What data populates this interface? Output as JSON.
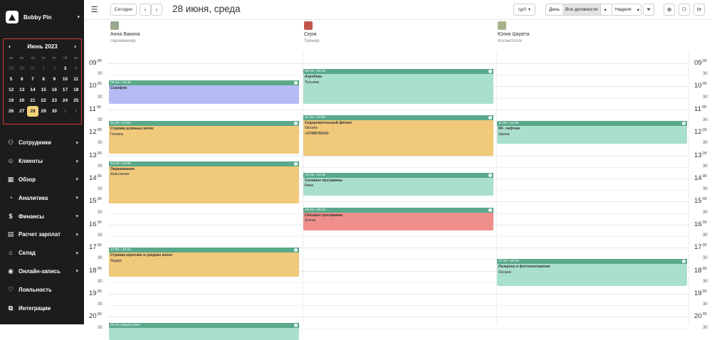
{
  "sidebar": {
    "brand": "Bobby Pin",
    "mini_calendar": {
      "month_label": "Июнь 2023",
      "weekdays": [
        "пн",
        "вт",
        "ср",
        "чт",
        "пт",
        "сб",
        "вс"
      ],
      "weeks": [
        [
          {
            "d": "29",
            "m": true
          },
          {
            "d": "30",
            "m": true
          },
          {
            "d": "31",
            "m": true
          },
          {
            "d": "1",
            "m": true
          },
          {
            "d": "2",
            "m": true
          },
          {
            "d": "3",
            "m": false
          },
          {
            "d": "4",
            "m": true
          }
        ],
        [
          {
            "d": "5"
          },
          {
            "d": "6"
          },
          {
            "d": "7"
          },
          {
            "d": "8"
          },
          {
            "d": "9"
          },
          {
            "d": "10"
          },
          {
            "d": "11"
          }
        ],
        [
          {
            "d": "12"
          },
          {
            "d": "13"
          },
          {
            "d": "14"
          },
          {
            "d": "15"
          },
          {
            "d": "16"
          },
          {
            "d": "17"
          },
          {
            "d": "18"
          }
        ],
        [
          {
            "d": "19"
          },
          {
            "d": "20"
          },
          {
            "d": "21"
          },
          {
            "d": "22"
          },
          {
            "d": "23"
          },
          {
            "d": "24"
          },
          {
            "d": "25"
          }
        ],
        [
          {
            "d": "26"
          },
          {
            "d": "27"
          },
          {
            "d": "28",
            "today": true
          },
          {
            "d": "29"
          },
          {
            "d": "30"
          },
          {
            "d": "1",
            "m": true
          },
          {
            "d": "2",
            "m": true
          }
        ]
      ]
    },
    "nav": [
      {
        "label": "Сотрудники",
        "icon": "users-icon",
        "glyph": "⚇",
        "chev": true
      },
      {
        "label": "Клиенты",
        "icon": "clients-icon",
        "glyph": "☺",
        "chev": true
      },
      {
        "label": "Обзор",
        "icon": "overview-icon",
        "glyph": "▦",
        "chev": true
      },
      {
        "label": "Аналитика",
        "icon": "analytics-icon",
        "glyph": "◔",
        "chev": true
      },
      {
        "label": "Финансы",
        "icon": "finance-icon",
        "glyph": "$",
        "chev": true
      },
      {
        "label": "Расчет зарплат",
        "icon": "salary-icon",
        "glyph": "▤",
        "chev": true
      },
      {
        "label": "Склад",
        "icon": "warehouse-icon",
        "glyph": "⌂",
        "chev": true
      },
      {
        "label": "Онлайн-запись",
        "icon": "online-booking-icon",
        "glyph": "◉",
        "chev": true
      },
      {
        "label": "Лояльность",
        "icon": "loyalty-icon",
        "glyph": "♡",
        "chev": false
      },
      {
        "label": "Интеграции",
        "icon": "integrations-icon",
        "glyph": "⧉",
        "chev": false
      }
    ]
  },
  "toolbar": {
    "menu_icon": "menu-icon",
    "today_label": "Сегодня",
    "prev_icon": "chevron-left-icon",
    "next_icon": "chevron-right-icon",
    "date_title": "28 июня, среда",
    "zoom_label": "ηρ0",
    "view_day": "День",
    "positions_label": "Все должности",
    "view_week": "Неделя",
    "filter_icon": "filter-icon",
    "zoom_icon": "zoom-icon",
    "user_settings_icon": "user-settings-icon",
    "refresh_icon": "refresh-icon"
  },
  "staff": [
    {
      "name": "Анна Вакина",
      "role": "парикмахер",
      "avatar_color": "#9aa88f"
    },
    {
      "name": "Серж",
      "role": "Тренер",
      "avatar_color": "#c2554b"
    },
    {
      "name": "Юлия Шкрета",
      "role": "Косметолог",
      "avatar_color": "#a6b48d"
    }
  ],
  "hours": [
    "09",
    "10",
    "11",
    "12",
    "13",
    "14",
    "15",
    "16",
    "17",
    "18",
    "19",
    "20"
  ],
  "minutes_label": "00",
  "half_label": "30",
  "events": [
    {
      "col": 0,
      "start": "09:45",
      "end": "10:45",
      "time": "09:45—10:45",
      "title": "Серафим",
      "client": "",
      "phone": "",
      "color": "purple"
    },
    {
      "col": 0,
      "start": "11:30",
      "end": "12:55",
      "time": "11:30—12:55",
      "title": "Стрижка длинных волос",
      "client": "Галина",
      "phone": "",
      "color": "orange"
    },
    {
      "col": 0,
      "start": "13:15",
      "end": "15:05",
      "time": "13:15—15:05",
      "title": "Окрашивание",
      "client": "Анастасия",
      "phone": "",
      "color": "orange"
    },
    {
      "col": 0,
      "start": "17:00",
      "end": "18:15",
      "time": "17:00—18:15",
      "title": "Стрижка коротких и средних волос",
      "client": "Лидия",
      "phone": "",
      "color": "orange"
    },
    {
      "col": 0,
      "start": "20:15",
      "end": "21:00",
      "time": "20:15 Новый сеанс",
      "title": "",
      "client": "",
      "phone": "",
      "color": "green"
    },
    {
      "col": 1,
      "start": "09:15",
      "end": "10:45",
      "time": "09:15—10:45",
      "title": "Аэробика",
      "client": "Татьяна",
      "phone": "",
      "color": "green"
    },
    {
      "col": 1,
      "start": "11:15",
      "end": "13:00",
      "time": "11:15—13:00",
      "title": "Оздоровительный фитнес",
      "client": "Оксана",
      "phone": "+37488765443",
      "color": "orange"
    },
    {
      "col": 1,
      "start": "13:45",
      "end": "14:45",
      "time": "13:45—14:45",
      "title": "Силовые программы",
      "client": "Иван",
      "phone": "",
      "color": "green"
    },
    {
      "col": 1,
      "start": "15:15",
      "end": "16:15",
      "time": "15:15—16:15",
      "title": "Силовые программы",
      "client": "Алена",
      "phone": "",
      "color": "red"
    },
    {
      "col": 2,
      "start": "11:30",
      "end": "12:30",
      "time": "11:30—12:30",
      "title": "RF- лифтинг",
      "client": "Арина",
      "phone": "",
      "color": "green"
    },
    {
      "col": 2,
      "start": "17:30",
      "end": "18:40",
      "time": "17:30—18:40",
      "title": "Лазерное и фотоомоложение",
      "client": "Оксана",
      "phone": "",
      "color": "green"
    }
  ]
}
